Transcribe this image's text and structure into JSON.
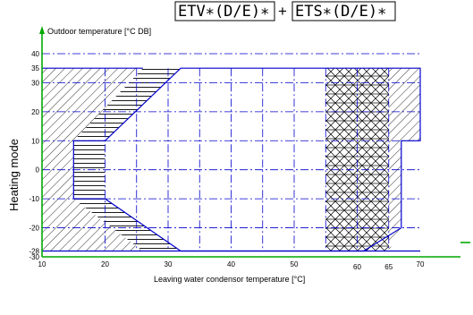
{
  "chart_data": {
    "type": "area",
    "title_parts": [
      "ETV∗(D/E)∗",
      "+",
      "ETS∗(D/E)∗"
    ],
    "side_label": "Heating mode",
    "ylabel": "Outdoor temperature [°C DB]",
    "xlabel": "Leaving water condensor temperature [°C]",
    "xlim": [
      10,
      70
    ],
    "ylim": [
      -30,
      44
    ],
    "x_ticks": [
      "10",
      "20",
      "30",
      "40",
      "50",
      "60",
      "65",
      "70"
    ],
    "x_tick_values": [
      10,
      20,
      30,
      40,
      50,
      60,
      65,
      70
    ],
    "y_ticks": [
      "40",
      "35",
      "30",
      "20",
      "10",
      "0",
      "-10",
      "-20",
      "-28",
      "-30"
    ],
    "y_tick_values": [
      40,
      35,
      30,
      20,
      10,
      0,
      -10,
      -20,
      -28,
      -30
    ],
    "regions": [
      {
        "pattern": "horizontal",
        "polygon": [
          [
            26,
            35
          ],
          [
            32,
            35
          ],
          [
            20,
            10
          ],
          [
            20,
            -10
          ],
          [
            32,
            -28
          ],
          [
            26,
            -28
          ],
          [
            15,
            -10
          ],
          [
            15,
            10
          ]
        ]
      },
      {
        "pattern": "crosshatch",
        "polygon": [
          [
            55,
            35
          ],
          [
            65,
            35
          ],
          [
            65,
            -28
          ],
          [
            55,
            -28
          ]
        ]
      },
      {
        "pattern": "diagonal",
        "polygon": [
          [
            10,
            35
          ],
          [
            26,
            35
          ],
          [
            15,
            10
          ],
          [
            15,
            -10
          ],
          [
            26,
            -28
          ],
          [
            10,
            -28
          ]
        ]
      },
      {
        "pattern": "diagonal",
        "polygon": [
          [
            65,
            35
          ],
          [
            70,
            35
          ],
          [
            70,
            10
          ],
          [
            67,
            10
          ],
          [
            67,
            -20
          ],
          [
            65,
            -28
          ]
        ]
      }
    ],
    "operating_boundary": [
      [
        15,
        10
      ],
      [
        20,
        10
      ],
      [
        32,
        35
      ],
      [
        70,
        35
      ],
      [
        70,
        10
      ],
      [
        67,
        10
      ],
      [
        67,
        -20
      ],
      [
        61,
        -28
      ],
      [
        32,
        -28
      ],
      [
        20,
        -10
      ],
      [
        15,
        -10
      ],
      [
        15,
        10
      ]
    ],
    "colors": {
      "boundary": "#0000cc",
      "axis": "#00aa00",
      "hatch": "#000000"
    }
  }
}
